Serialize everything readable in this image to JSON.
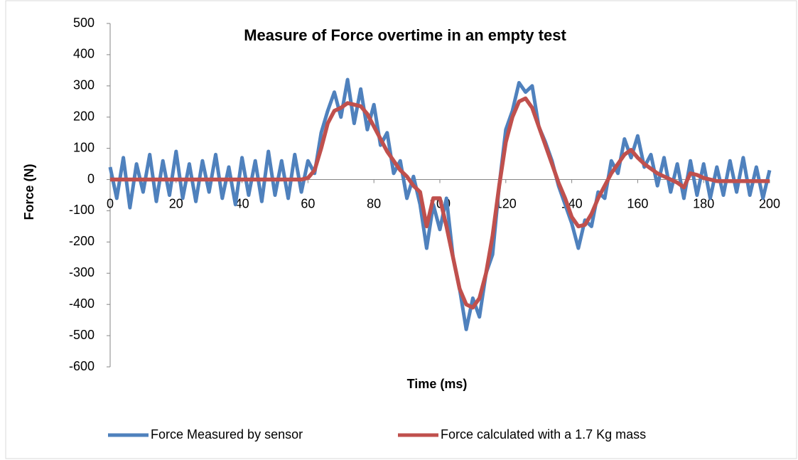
{
  "chart_data": {
    "type": "line",
    "title": "Measure of Force overtime in an empty test",
    "x_label": "Time (ms)",
    "y_label": "Force (N)",
    "x": [
      0,
      2,
      4,
      6,
      8,
      10,
      12,
      14,
      16,
      18,
      20,
      22,
      24,
      26,
      28,
      30,
      32,
      34,
      36,
      38,
      40,
      42,
      44,
      46,
      48,
      50,
      52,
      54,
      56,
      58,
      60,
      62,
      64,
      66,
      68,
      70,
      72,
      74,
      76,
      78,
      80,
      82,
      84,
      86,
      88,
      90,
      92,
      94,
      96,
      98,
      100,
      102,
      104,
      106,
      108,
      110,
      112,
      114,
      116,
      118,
      120,
      122,
      124,
      126,
      128,
      130,
      132,
      134,
      136,
      138,
      140,
      142,
      144,
      146,
      148,
      150,
      152,
      154,
      156,
      158,
      160,
      162,
      164,
      166,
      168,
      170,
      172,
      174,
      176,
      178,
      180,
      182,
      184,
      186,
      188,
      190,
      192,
      194,
      196,
      198,
      200
    ],
    "series": [
      {
        "name": "Force Measured by sensor",
        "color": "#4f81bd",
        "values": [
          40,
          -60,
          70,
          -90,
          50,
          -40,
          80,
          -70,
          60,
          -50,
          90,
          -60,
          50,
          -70,
          60,
          -40,
          80,
          -60,
          40,
          -80,
          70,
          -50,
          60,
          -70,
          90,
          -50,
          60,
          -60,
          80,
          -40,
          60,
          20,
          150,
          220,
          280,
          200,
          320,
          180,
          290,
          160,
          240,
          110,
          150,
          20,
          60,
          -60,
          10,
          -80,
          -220,
          -80,
          -160,
          -60,
          -250,
          -350,
          -480,
          -380,
          -440,
          -300,
          -240,
          -20,
          160,
          220,
          310,
          280,
          300,
          170,
          120,
          60,
          -20,
          -80,
          -140,
          -220,
          -130,
          -150,
          -40,
          -60,
          60,
          20,
          130,
          70,
          140,
          40,
          80,
          -20,
          70,
          -40,
          50,
          -60,
          60,
          -50,
          50,
          -60,
          40,
          -50,
          60,
          -40,
          70,
          -50,
          40,
          -60,
          30
        ]
      },
      {
        "name": "Force calculated with a 1.7 Kg mass",
        "color": "#c0504d",
        "values": [
          0,
          0,
          0,
          0,
          0,
          0,
          0,
          0,
          0,
          0,
          0,
          0,
          0,
          0,
          0,
          0,
          0,
          0,
          0,
          0,
          0,
          0,
          0,
          0,
          0,
          0,
          0,
          0,
          0,
          0,
          5,
          30,
          100,
          180,
          220,
          230,
          245,
          240,
          235,
          210,
          170,
          130,
          90,
          60,
          30,
          10,
          -20,
          -40,
          -150,
          -60,
          -60,
          -150,
          -250,
          -350,
          -400,
          -410,
          -380,
          -300,
          -180,
          -20,
          120,
          200,
          250,
          260,
          230,
          170,
          110,
          50,
          -10,
          -60,
          -120,
          -150,
          -145,
          -110,
          -60,
          -20,
          20,
          50,
          80,
          95,
          70,
          50,
          35,
          20,
          10,
          0,
          -10,
          -25,
          20,
          15,
          5,
          0,
          -5,
          -5,
          -5,
          -5,
          -5,
          -5,
          -5,
          -5,
          -5
        ]
      }
    ],
    "xlim": [
      0,
      200
    ],
    "xticks": [
      0,
      20,
      40,
      60,
      80,
      100,
      120,
      140,
      160,
      180,
      200
    ],
    "ylim": [
      -600,
      500
    ],
    "yticks": [
      -600,
      -500,
      -400,
      -300,
      -200,
      -100,
      0,
      100,
      200,
      300,
      400,
      500
    ],
    "legend": "bottom"
  }
}
